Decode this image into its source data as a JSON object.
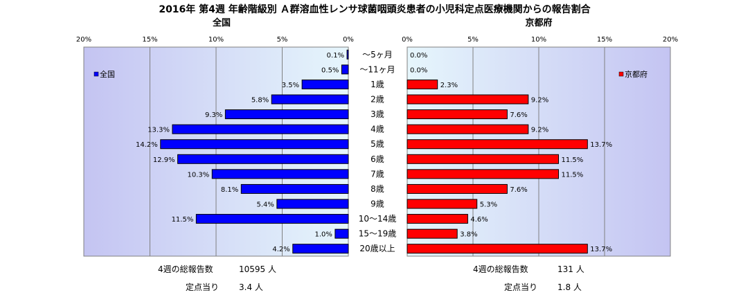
{
  "title": "2016年 第4週 年齢階級別 Ａ群溶血性レンサ球菌咽頭炎患者の小児科定点医療機関からの報告割合",
  "left_footer": {
    "total_label": "4週の総報告数",
    "total_value": "10595 人",
    "per_label": "定点当り",
    "per_value": "3.4 人"
  },
  "right_footer": {
    "total_label": "4週の総報告数",
    "total_value": "131 人",
    "per_label": "定点当り",
    "per_value": "1.8 人"
  },
  "colors": {
    "nation": "#0000ff",
    "kyoto": "#ff0000",
    "plot_bg_edge": "#c0c0f0",
    "plot_bg_mid": "#e8f4fc"
  },
  "chart_data": [
    {
      "type": "bar",
      "orientation": "horizontal",
      "x_reversed": true,
      "title": "全国",
      "legend_label": "全国",
      "legend_position": "top-left",
      "xlim": [
        0,
        20
      ],
      "x_ticks": [
        "0%",
        "5%",
        "10%",
        "15%",
        "20%"
      ],
      "grid": true,
      "categories": [
        "～5ヶ月",
        "～11ヶ月",
        "1歳",
        "2歳",
        "3歳",
        "4歳",
        "5歳",
        "6歳",
        "7歳",
        "8歳",
        "9歳",
        "10～14歳",
        "15～19歳",
        "20歳以上"
      ],
      "values": [
        0.1,
        0.5,
        3.5,
        5.8,
        9.3,
        13.3,
        14.2,
        12.9,
        10.3,
        8.1,
        5.4,
        11.5,
        1.0,
        4.2
      ],
      "labels": [
        "0.1%",
        "0.5%",
        "3.5%",
        "5.8%",
        "9.3%",
        "13.3%",
        "14.2%",
        "12.9%",
        "10.3%",
        "8.1%",
        "5.4%",
        "11.5%",
        "1.0%",
        "4.2%"
      ]
    },
    {
      "type": "bar",
      "orientation": "horizontal",
      "x_reversed": false,
      "title": "京都府",
      "legend_label": "京都府",
      "legend_position": "top-right",
      "xlim": [
        0,
        20
      ],
      "x_ticks": [
        "0%",
        "5%",
        "10%",
        "15%",
        "20%"
      ],
      "grid": true,
      "categories": [
        "～5ヶ月",
        "～11ヶ月",
        "1歳",
        "2歳",
        "3歳",
        "4歳",
        "5歳",
        "6歳",
        "7歳",
        "8歳",
        "9歳",
        "10～14歳",
        "15～19歳",
        "20歳以上"
      ],
      "values": [
        0.0,
        0.0,
        2.3,
        9.2,
        7.6,
        9.2,
        13.7,
        11.5,
        11.5,
        7.6,
        5.3,
        4.6,
        3.8,
        13.7
      ],
      "labels": [
        "0.0%",
        "0.0%",
        "2.3%",
        "9.2%",
        "7.6%",
        "9.2%",
        "13.7%",
        "11.5%",
        "11.5%",
        "7.6%",
        "5.3%",
        "4.6%",
        "3.8%",
        "13.7%"
      ]
    }
  ]
}
